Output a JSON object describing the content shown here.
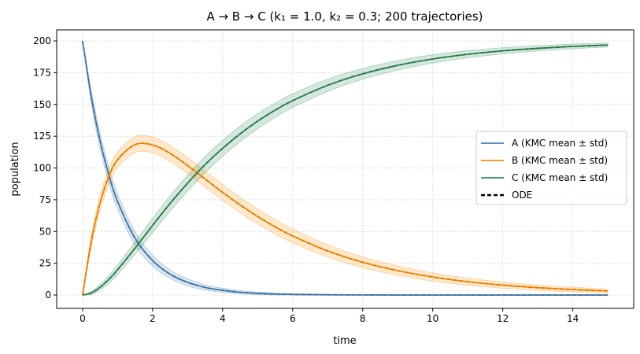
{
  "chart_data": {
    "type": "line",
    "title": "A → B → C   (k₁ = 1.0, k₂ = 0.3; 200 trajectories)",
    "xlabel": "time",
    "ylabel": "population",
    "xlim": [
      -0.74,
      15.74
    ],
    "ylim": [
      -10.5,
      208.7
    ],
    "xticks": [
      0,
      2,
      4,
      6,
      8,
      10,
      12,
      14
    ],
    "yticks": [
      0,
      25,
      50,
      75,
      100,
      125,
      150,
      175,
      200
    ],
    "grid": true,
    "legend_position": "center-right",
    "n_trajectories": 200,
    "x": [
      0,
      0.25,
      0.5,
      0.75,
      1,
      1.5,
      2,
      2.5,
      3,
      3.5,
      4,
      4.5,
      5,
      5.5,
      6,
      7,
      8,
      9,
      10,
      11,
      12,
      13,
      14,
      15
    ],
    "series": [
      {
        "name": "A (KMC mean ± std)",
        "color": "#4682b4",
        "ode_color": "#3a6d99",
        "values": [
          200,
          155.8,
          121.3,
          94.5,
          73.6,
          44.6,
          27.1,
          16.4,
          10.0,
          6.0,
          3.7,
          2.2,
          1.3,
          0.8,
          0.5,
          0.2,
          0.1,
          0,
          0,
          0,
          0,
          0,
          0,
          0
        ]
      },
      {
        "name": "B (KMC mean ± std)",
        "color": "#ff8c00",
        "ode_color": "#d97700",
        "values": [
          0,
          42.5,
          72.6,
          93.2,
          106.5,
          118.4,
          118.1,
          111.5,
          101.9,
          91.3,
          80.8,
          70.9,
          61.8,
          53.7,
          46.5,
          34.7,
          25.8,
          19.2,
          14.2,
          10.5,
          7.8,
          5.8,
          4.3,
          3.2
        ]
      },
      {
        "name": "C (KMC mean ± std)",
        "color": "#2e8b57",
        "ode_color": "#246e45",
        "values": [
          0,
          1.7,
          6.1,
          12.3,
          19.9,
          37.0,
          54.8,
          72.1,
          88.1,
          102.7,
          115.5,
          126.9,
          136.9,
          145.5,
          153.0,
          165.1,
          174.1,
          180.8,
          185.8,
          189.5,
          192.2,
          194.2,
          195.7,
          196.8
        ]
      }
    ],
    "ode_legend": "ODE"
  }
}
